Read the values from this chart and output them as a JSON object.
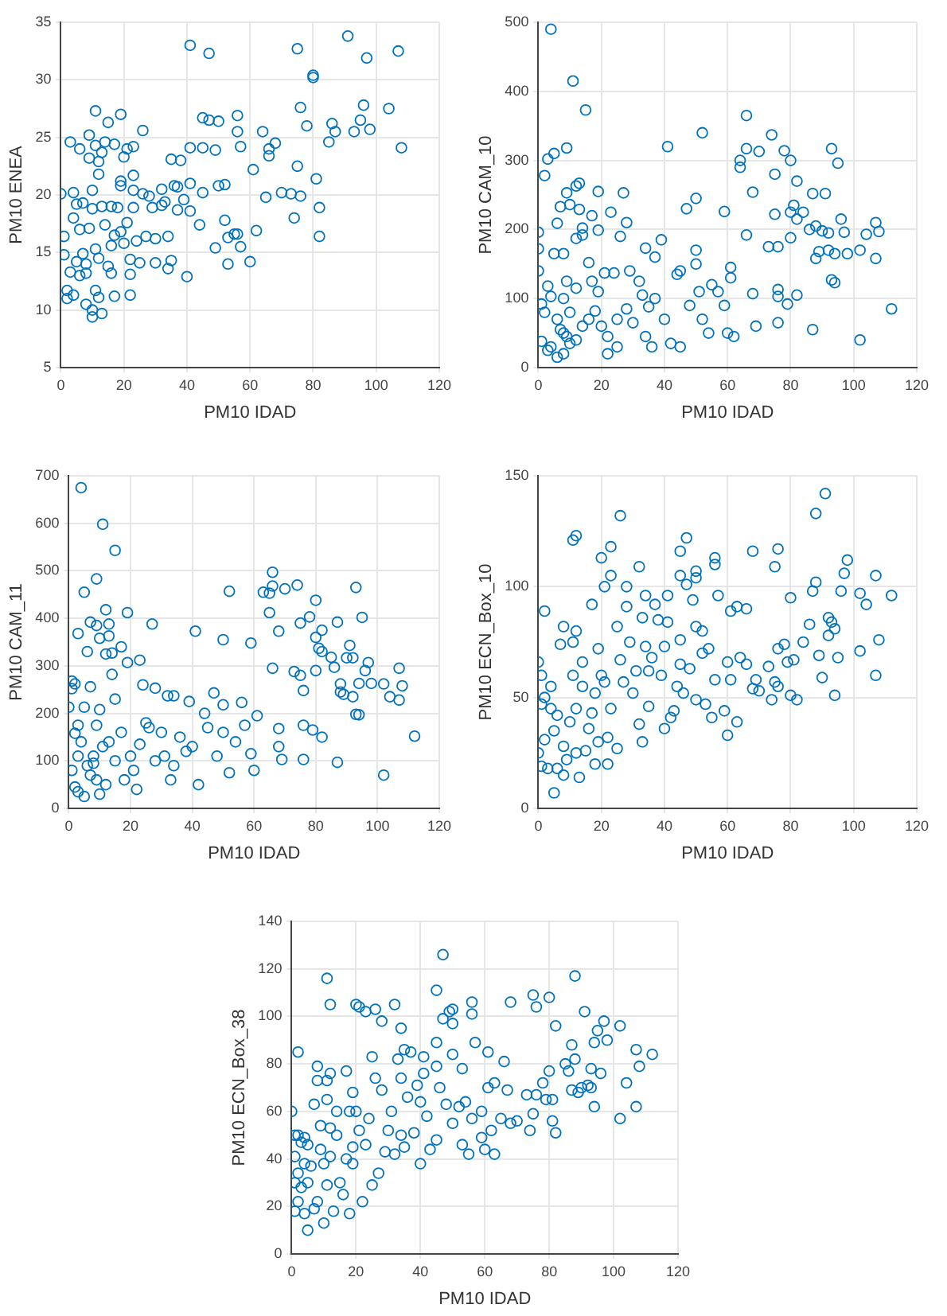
{
  "chart_data": [
    {
      "type": "scatter",
      "xlabel": "PM10 IDAD",
      "ylabel": "PM10 ENEA",
      "color": "#0072bd",
      "marker": "circle",
      "grid": true,
      "xlim": [
        0,
        120
      ],
      "xticks": [
        0,
        20,
        40,
        60,
        80,
        100,
        120
      ],
      "ylim": [
        5,
        35
      ],
      "yticks": [
        5,
        10,
        15,
        20,
        25,
        30,
        35
      ],
      "x": [
        0,
        1,
        1,
        2,
        2,
        3,
        3,
        4,
        4,
        4,
        5,
        5,
        6,
        6,
        6,
        7,
        7,
        8,
        8,
        8,
        9,
        9,
        9,
        10,
        10,
        10,
        10,
        11,
        11,
        11,
        11,
        12,
        12,
        12,
        12,
        13,
        13,
        13,
        14,
        14,
        15,
        15,
        16,
        16,
        16,
        17,
        17,
        17,
        18,
        19,
        19,
        19,
        19,
        20,
        20,
        21,
        21,
        22,
        22,
        22,
        23,
        23,
        23,
        23,
        24,
        25,
        26,
        26,
        27,
        28,
        29,
        30,
        30,
        32,
        32,
        33,
        34,
        34,
        35,
        35,
        36,
        37,
        37,
        38,
        39,
        40,
        41,
        41,
        41,
        41,
        44,
        45,
        45,
        45,
        47,
        47,
        49,
        49,
        50,
        50,
        52,
        52,
        53,
        53,
        55,
        56,
        56,
        56,
        57,
        57,
        60,
        61,
        62,
        64,
        65,
        66,
        66,
        68,
        70,
        73,
        74,
        75,
        75,
        76,
        76,
        78,
        80,
        80,
        81,
        82,
        82,
        85,
        86,
        87,
        91,
        93,
        95,
        96,
        97,
        98,
        104,
        107,
        108
      ],
      "values": [
        20.1,
        16.4,
        14.8,
        11,
        11.7,
        24.6,
        13.3,
        11.3,
        20.2,
        18,
        19.2,
        14.2,
        24,
        17,
        13,
        19.3,
        14.9,
        14,
        13.2,
        10.5,
        25.2,
        23.2,
        17.1,
        20.4,
        18.8,
        9.4,
        10,
        27.3,
        24.3,
        15.3,
        11.7,
        22.9,
        21.8,
        14.5,
        11.1,
        23.7,
        19,
        9.7,
        24.6,
        17.4,
        26.3,
        13.8,
        19,
        15.6,
        13.2,
        24.4,
        16.5,
        11.2,
        18.9,
        27,
        21.2,
        20.8,
        16.8,
        23.3,
        15.8,
        24,
        17.6,
        14.4,
        13.1,
        11.3,
        24.2,
        21.7,
        20.4,
        18.9,
        16,
        14.1,
        25.6,
        20.1,
        16.4,
        19.9,
        18.9,
        16.2,
        14.1,
        20.5,
        19.1,
        19.4,
        16.4,
        13.6,
        23.1,
        14.3,
        20.8,
        20.7,
        18.7,
        23,
        19.6,
        12.9,
        33,
        24.1,
        21,
        18.6,
        17.4,
        26.7,
        24.1,
        20.2,
        32.3,
        26.5,
        23.9,
        15.4,
        26.4,
        20.8,
        20.9,
        17.8,
        16.3,
        14,
        16.6,
        26.9,
        25.5,
        16.6,
        24.2,
        15.5,
        14.2,
        22.2,
        16.9,
        25.5,
        19.8,
        24,
        23.4,
        24.5,
        20.2,
        20.1,
        18,
        32.7,
        22.5,
        27.6,
        19.9,
        26,
        30.4,
        30.2,
        21.4,
        18.9,
        16.4,
        24.6,
        26.2,
        25.5,
        33.8,
        25.5,
        26.5,
        27.8,
        31.9,
        25.7,
        27.5,
        32.5,
        24.1
      ]
    },
    {
      "type": "scatter",
      "xlabel": "PM10 IDAD",
      "ylabel": "PM10 CAM_10",
      "color": "#0072bd",
      "marker": "circle",
      "grid": true,
      "xlim": [
        0,
        120
      ],
      "xticks": [
        0,
        20,
        40,
        60,
        80,
        100,
        120
      ],
      "ylim": [
        0,
        500
      ],
      "yticks": [
        0,
        100,
        200,
        300,
        400,
        500
      ],
      "x": [
        4,
        11,
        15,
        9,
        5,
        3,
        2,
        13,
        12,
        9,
        19,
        27,
        10,
        7,
        13,
        23,
        17,
        6,
        28,
        14,
        19,
        0,
        14,
        12,
        26,
        0,
        5,
        8,
        16,
        0,
        9,
        17,
        21,
        3,
        12,
        24,
        19,
        1,
        4,
        8,
        10,
        2,
        6,
        7,
        8,
        9,
        4,
        1,
        3,
        6,
        8,
        10,
        12,
        14,
        16,
        18,
        20,
        22,
        22,
        25,
        25,
        28,
        29,
        30,
        32,
        33,
        34,
        35,
        36,
        37,
        39,
        34,
        37,
        41,
        40,
        42,
        44,
        45,
        45,
        47,
        48,
        50,
        50,
        50,
        51,
        52,
        52,
        54,
        55,
        57,
        59,
        59,
        60,
        61,
        61,
        62,
        64,
        64,
        66,
        66,
        66,
        68,
        68,
        69,
        70,
        73,
        74,
        75,
        75,
        76,
        76,
        76,
        76,
        78,
        79,
        80,
        80,
        80,
        81,
        82,
        82,
        82,
        84,
        86,
        87,
        87,
        88,
        88,
        89,
        90,
        91,
        92,
        92,
        93,
        93,
        94,
        94,
        95,
        96,
        97,
        98,
        102,
        102,
        104,
        107,
        107,
        108,
        112
      ],
      "values": [
        490,
        415,
        373,
        318,
        310,
        302,
        278,
        267,
        263,
        253,
        255,
        253,
        236,
        233,
        229,
        225,
        220,
        209,
        210,
        202,
        199,
        196,
        192,
        187,
        190,
        172,
        165,
        165,
        152,
        140,
        125,
        125,
        137,
        118,
        115,
        137,
        110,
        92,
        103,
        100,
        80,
        80,
        70,
        55,
        50,
        45,
        30,
        38,
        25,
        15,
        20,
        35,
        40,
        60,
        70,
        82,
        60,
        45,
        20,
        30,
        70,
        85,
        140,
        65,
        125,
        105,
        45,
        88,
        30,
        100,
        185,
        173,
        160,
        320,
        70,
        35,
        135,
        140,
        30,
        230,
        90,
        245,
        170,
        150,
        110,
        340,
        70,
        50,
        120,
        110,
        226,
        90,
        50,
        145,
        130,
        45,
        300,
        290,
        365,
        317,
        192,
        254,
        107,
        60,
        313,
        175,
        337,
        280,
        222,
        175,
        113,
        103,
        65,
        314,
        92,
        300,
        225,
        188,
        235,
        270,
        215,
        105,
        225,
        200,
        252,
        55,
        205,
        158,
        168,
        198,
        252,
        170,
        195,
        317,
        127,
        123,
        165,
        296,
        215,
        196,
        165,
        170,
        40,
        193,
        210,
        158,
        197,
        85
      ]
    },
    {
      "type": "scatter",
      "xlabel": "PM10 IDAD",
      "ylabel": "PM10 CAM_11",
      "color": "#0072bd",
      "marker": "circle",
      "grid": true,
      "xlim": [
        0,
        120
      ],
      "xticks": [
        0,
        20,
        40,
        60,
        80,
        100,
        120
      ],
      "ylim": [
        0,
        700
      ],
      "yticks": [
        0,
        100,
        200,
        300,
        400,
        500,
        600,
        700
      ],
      "x": [
        4,
        11,
        15,
        9,
        5,
        12,
        19,
        7,
        9,
        13,
        3,
        13,
        10,
        6,
        12,
        17,
        14,
        19,
        23,
        27,
        14,
        1,
        2,
        1,
        7,
        24,
        28,
        32,
        34,
        15,
        0,
        5,
        10,
        39,
        9,
        3,
        2,
        4,
        3,
        1,
        2,
        3,
        5,
        6,
        7,
        8,
        9,
        10,
        8,
        11,
        12,
        13,
        15,
        17,
        18,
        20,
        21,
        22,
        23,
        25,
        26,
        28,
        30,
        31,
        33,
        34,
        36,
        38,
        40,
        41,
        42,
        44,
        45,
        47,
        48,
        50,
        50,
        50,
        52,
        52,
        54,
        56,
        57,
        59,
        59,
        60,
        61,
        63,
        65,
        65,
        66,
        66,
        66,
        68,
        68,
        68,
        69,
        70,
        73,
        74,
        75,
        75,
        76,
        76,
        76,
        78,
        79,
        80,
        80,
        80,
        81,
        82,
        82,
        82,
        85,
        86,
        87,
        87,
        88,
        88,
        89,
        90,
        91,
        92,
        92,
        93,
        93,
        94,
        94,
        95,
        96,
        97,
        98,
        102,
        102,
        104,
        107,
        107,
        108,
        112
      ],
      "values": [
        675,
        598,
        543,
        483,
        455,
        418,
        412,
        392,
        385,
        388,
        368,
        363,
        358,
        330,
        325,
        340,
        327,
        307,
        312,
        388,
        282,
        268,
        262,
        252,
        256,
        260,
        253,
        237,
        237,
        230,
        213,
        213,
        208,
        225,
        175,
        175,
        158,
        140,
        110,
        80,
        45,
        35,
        25,
        90,
        70,
        110,
        60,
        30,
        95,
        130,
        50,
        140,
        100,
        160,
        60,
        110,
        80,
        40,
        135,
        180,
        170,
        100,
        160,
        110,
        60,
        90,
        150,
        120,
        130,
        373,
        50,
        200,
        170,
        243,
        110,
        355,
        218,
        160,
        457,
        75,
        140,
        223,
        175,
        348,
        115,
        80,
        195,
        455,
        453,
        412,
        497,
        468,
        295,
        373,
        130,
        168,
        103,
        462,
        288,
        470,
        390,
        280,
        248,
        175,
        103,
        403,
        165,
        438,
        360,
        290,
        337,
        375,
        330,
        150,
        318,
        297,
        392,
        97,
        262,
        245,
        240,
        317,
        343,
        317,
        235,
        465,
        198,
        263,
        197,
        402,
        290,
        307,
        263,
        262,
        70,
        235,
        295,
        228,
        258,
        152
      ]
    },
    {
      "type": "scatter",
      "xlabel": "PM10 IDAD",
      "ylabel": "PM10 ECN_Box_10",
      "color": "#0072bd",
      "marker": "circle",
      "grid": true,
      "xlim": [
        0,
        120
      ],
      "xticks": [
        0,
        20,
        40,
        60,
        80,
        100,
        120
      ],
      "ylim": [
        0,
        150
      ],
      "yticks": [
        0,
        50,
        100,
        150
      ],
      "x": [
        0,
        1,
        1,
        0,
        1,
        2,
        2,
        2,
        3,
        4,
        4,
        5,
        5,
        6,
        6,
        7,
        8,
        8,
        8,
        9,
        10,
        11,
        11,
        11,
        12,
        12,
        12,
        12,
        13,
        14,
        14,
        15,
        16,
        17,
        17,
        18,
        18,
        19,
        19,
        20,
        20,
        21,
        21,
        22,
        22,
        23,
        23,
        23,
        25,
        25,
        26,
        26,
        27,
        28,
        28,
        29,
        30,
        31,
        32,
        32,
        33,
        33,
        34,
        34,
        35,
        35,
        36,
        37,
        38,
        39,
        40,
        40,
        41,
        41,
        42,
        43,
        44,
        45,
        45,
        45,
        45,
        46,
        47,
        47,
        48,
        49,
        50,
        50,
        50,
        50,
        52,
        52,
        53,
        54,
        55,
        56,
        56,
        56,
        57,
        59,
        60,
        60,
        61,
        61,
        63,
        63,
        64,
        66,
        66,
        68,
        68,
        69,
        70,
        73,
        74,
        75,
        75,
        76,
        76,
        76,
        78,
        79,
        80,
        80,
        81,
        82,
        84,
        86,
        87,
        88,
        88,
        89,
        90,
        91,
        92,
        92,
        93,
        94,
        94,
        95,
        96,
        97,
        98,
        102,
        102,
        104,
        107,
        107,
        108,
        112
      ],
      "values": [
        66,
        60,
        47,
        25,
        19,
        89,
        50,
        31,
        18,
        45,
        55,
        35,
        7,
        42,
        18,
        74,
        82,
        28,
        15,
        22,
        39,
        121,
        75,
        60,
        123,
        80,
        45,
        25,
        14,
        66,
        55,
        26,
        36,
        92,
        43,
        52,
        20,
        72,
        30,
        113,
        60,
        100,
        57,
        32,
        20,
        118,
        105,
        45,
        82,
        27,
        132,
        67,
        57,
        100,
        91,
        75,
        52,
        62,
        109,
        38,
        86,
        30,
        96,
        73,
        46,
        62,
        68,
        92,
        85,
        60,
        73,
        36,
        96,
        84,
        41,
        44,
        55,
        116,
        105,
        76,
        65,
        52,
        122,
        101,
        63,
        94,
        107,
        104,
        82,
        49,
        80,
        70,
        47,
        72,
        41,
        113,
        110,
        58,
        96,
        44,
        66,
        33,
        89,
        58,
        91,
        39,
        68,
        90,
        65,
        116,
        54,
        58,
        53,
        64,
        49,
        109,
        57,
        117,
        72,
        55,
        74,
        66,
        95,
        51,
        67,
        49,
        75,
        83,
        98,
        133,
        102,
        69,
        59,
        142,
        86,
        78,
        84,
        51,
        81,
        68,
        98,
        106,
        112,
        97,
        71,
        92,
        105,
        60,
        76,
        96
      ]
    },
    {
      "type": "scatter",
      "xlabel": "PM10 IDAD",
      "ylabel": "PM10 ECN_Box_38",
      "color": "#0072bd",
      "marker": "circle",
      "grid": true,
      "xlim": [
        0,
        120
      ],
      "xticks": [
        0,
        20,
        40,
        60,
        80,
        100,
        120
      ],
      "ylim": [
        0,
        140
      ],
      "yticks": [
        0,
        20,
        40,
        60,
        80,
        100,
        120,
        140
      ],
      "x": [
        0,
        1,
        1,
        1,
        1,
        2,
        2,
        2,
        2,
        3,
        3,
        4,
        4,
        4,
        5,
        5,
        5,
        6,
        7,
        7,
        8,
        8,
        8,
        9,
        9,
        10,
        10,
        11,
        11,
        11,
        11,
        12,
        12,
        12,
        12,
        13,
        14,
        14,
        15,
        16,
        17,
        17,
        18,
        18,
        19,
        19,
        19,
        20,
        20,
        21,
        21,
        22,
        23,
        23,
        24,
        25,
        25,
        26,
        26,
        27,
        28,
        28,
        29,
        30,
        31,
        32,
        32,
        33,
        34,
        34,
        34,
        35,
        35,
        36,
        37,
        38,
        39,
        40,
        40,
        41,
        41,
        42,
        43,
        45,
        45,
        45,
        45,
        46,
        47,
        47,
        48,
        49,
        50,
        50,
        50,
        50,
        52,
        53,
        53,
        54,
        55,
        56,
        56,
        56,
        57,
        59,
        59,
        60,
        61,
        61,
        62,
        63,
        63,
        65,
        66,
        67,
        68,
        68,
        70,
        73,
        74,
        75,
        75,
        76,
        76,
        78,
        79,
        80,
        80,
        81,
        81,
        82,
        82,
        85,
        86,
        87,
        87,
        88,
        88,
        89,
        90,
        91,
        92,
        93,
        93,
        94,
        94,
        95,
        96,
        97,
        98,
        102,
        102,
        104,
        107,
        107,
        108,
        112
      ],
      "values": [
        60,
        50,
        41,
        30,
        18,
        85,
        50,
        34,
        22,
        47,
        28,
        49,
        38,
        17,
        10,
        46,
        30,
        37,
        63,
        19,
        79,
        73,
        22,
        54,
        44,
        38,
        13,
        116,
        73,
        65,
        29,
        105,
        76,
        53,
        41,
        18,
        60,
        50,
        30,
        25,
        77,
        40,
        60,
        17,
        68,
        45,
        38,
        105,
        60,
        104,
        52,
        22,
        102,
        46,
        57,
        83,
        29,
        103,
        74,
        34,
        98,
        69,
        43,
        52,
        60,
        105,
        42,
        82,
        95,
        74,
        50,
        86,
        45,
        66,
        85,
        51,
        71,
        64,
        38,
        83,
        76,
        58,
        44,
        111,
        89,
        79,
        48,
        70,
        126,
        99,
        63,
        102,
        103,
        97,
        84,
        55,
        62,
        78,
        46,
        64,
        42,
        106,
        101,
        57,
        89,
        49,
        60,
        44,
        85,
        70,
        52,
        72,
        42,
        57,
        81,
        69,
        106,
        55,
        56,
        67,
        52,
        109,
        59,
        104,
        67,
        72,
        65,
        108,
        77,
        65,
        56,
        96,
        51,
        80,
        77,
        88,
        69,
        117,
        82,
        68,
        70,
        102,
        71,
        78,
        70,
        89,
        62,
        94,
        76,
        98,
        90,
        96,
        57,
        72,
        86,
        62,
        79,
        84
      ]
    }
  ]
}
